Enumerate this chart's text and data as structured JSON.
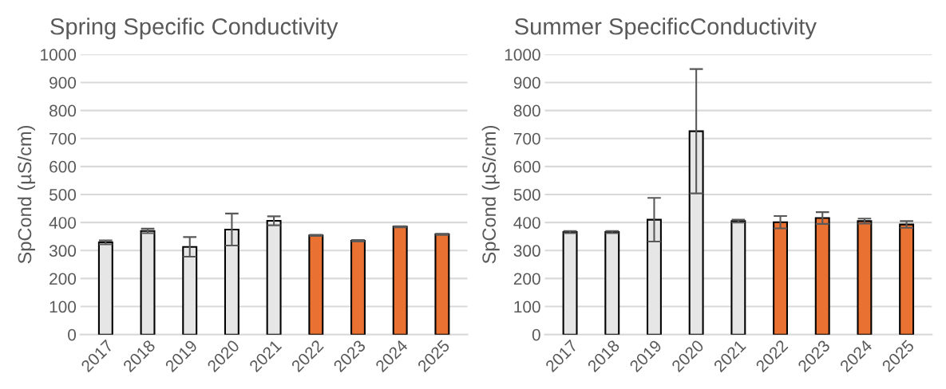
{
  "chart_data": [
    {
      "type": "bar",
      "title": "Spring Specific Conductivity",
      "ylabel": "SpCond (µS/cm)",
      "categories": [
        "2017",
        "2018",
        "2019",
        "2020",
        "2021",
        "2022",
        "2023",
        "2024",
        "2025"
      ],
      "values": [
        329,
        370,
        313,
        375,
        406,
        354,
        335,
        385,
        358
      ],
      "errors": [
        7,
        8,
        35,
        57,
        16,
        2,
        3,
        2,
        2
      ],
      "colors": [
        "#e6e6e6",
        "#e6e6e6",
        "#e6e6e6",
        "#e6e6e6",
        "#e6e6e6",
        "#e97132",
        "#e97132",
        "#e97132",
        "#e97132"
      ],
      "ylim": [
        0,
        1000
      ],
      "yticks": [
        0,
        100,
        200,
        300,
        400,
        500,
        600,
        700,
        800,
        900,
        1000
      ],
      "grid": "y"
    },
    {
      "type": "bar",
      "title": "Summer SpecificConductivity",
      "ylabel": "SpCond (µS/cm)",
      "categories": [
        "2017",
        "2018",
        "2019",
        "2020",
        "2021",
        "2022",
        "2023",
        "2024",
        "2025"
      ],
      "values": [
        366,
        366,
        410,
        726,
        405,
        401,
        416,
        405,
        393
      ],
      "errors": [
        4,
        4,
        78,
        222,
        5,
        22,
        21,
        9,
        12
      ],
      "colors": [
        "#e6e6e6",
        "#e6e6e6",
        "#e6e6e6",
        "#e6e6e6",
        "#e6e6e6",
        "#e97132",
        "#e97132",
        "#e97132",
        "#e97132"
      ],
      "ylim": [
        0,
        1000
      ],
      "yticks": [
        0,
        100,
        200,
        300,
        400,
        500,
        600,
        700,
        800,
        900,
        1000
      ],
      "grid": "y"
    }
  ]
}
